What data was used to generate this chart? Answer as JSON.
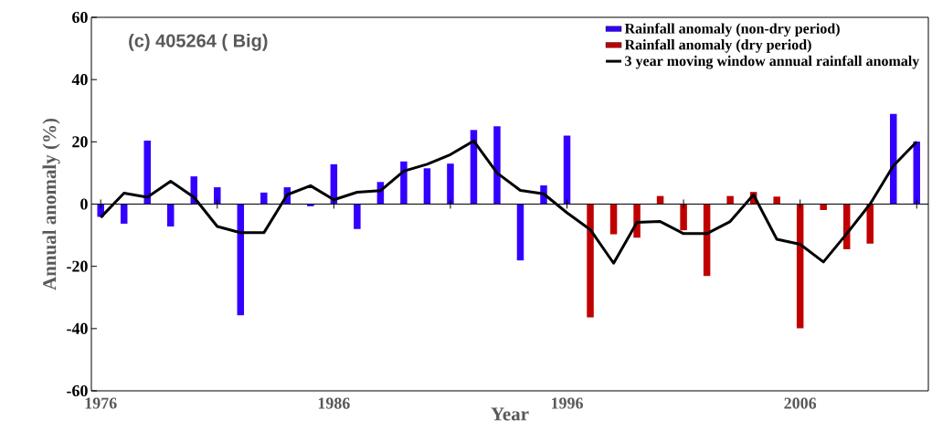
{
  "chart_data": {
    "type": "bar",
    "title": "(c) 405264 ( Big)",
    "xlabel": "Year",
    "ylabel": "Annual anomaly (%)",
    "x": [
      1976,
      1977,
      1978,
      1979,
      1980,
      1981,
      1982,
      1983,
      1984,
      1985,
      1986,
      1987,
      1988,
      1989,
      1990,
      1991,
      1992,
      1993,
      1994,
      1995,
      1996,
      1997,
      1998,
      1999,
      2000,
      2001,
      2002,
      2003,
      2004,
      2005,
      2006,
      2007,
      2008,
      2009,
      2010,
      2011
    ],
    "series": [
      {
        "name": "Rainfall anomaly (non-dry period)",
        "color": "#3300ff",
        "values": [
          -4.1,
          -6.3,
          20.4,
          -7.2,
          8.9,
          5.4,
          -35.7,
          3.7,
          5.4,
          -0.7,
          12.8,
          -8.0,
          7.1,
          13.7,
          11.5,
          13.0,
          23.8,
          25.0,
          -18.1,
          6.0,
          22.0,
          null,
          null,
          null,
          null,
          null,
          null,
          null,
          null,
          null,
          null,
          null,
          null,
          null,
          29.0,
          20.1
        ]
      },
      {
        "name": "Rainfall anomaly (dry period)",
        "color": "#c00000",
        "values": [
          null,
          null,
          null,
          null,
          null,
          null,
          null,
          null,
          null,
          null,
          null,
          null,
          null,
          null,
          null,
          null,
          null,
          null,
          null,
          null,
          null,
          -36.4,
          -9.7,
          -10.8,
          2.6,
          -8.4,
          -23.1,
          2.6,
          3.9,
          2.4,
          -39.9,
          -1.9,
          -14.5,
          -12.7,
          null,
          null
        ]
      },
      {
        "name": "3 year moving window annual rainfall anomaly",
        "type": "line",
        "color": "#000000",
        "values": [
          -4.3,
          3.5,
          2.2,
          7.3,
          2.2,
          -7.2,
          -9.2,
          -9.2,
          3.0,
          5.9,
          1.4,
          3.8,
          4.3,
          10.6,
          12.8,
          15.9,
          20.3,
          10.0,
          4.4,
          3.3,
          -2.8,
          -8.2,
          -19.0,
          -5.9,
          -5.6,
          -9.5,
          -9.5,
          -5.6,
          3.0,
          -11.3,
          -12.9,
          -18.6,
          -9.5,
          0.0,
          12.3,
          20.0
        ]
      }
    ],
    "xlim": [
      1975.6,
      2011.5
    ],
    "xticks": [
      1976,
      {
        "value": 1981,
        "label": null
      },
      1986,
      {
        "value": 1991,
        "label": null
      },
      1996,
      {
        "value": 2001,
        "label": null
      },
      2006,
      {
        "value": 2011,
        "label": null
      }
    ],
    "ylim": [
      -60,
      60
    ],
    "yticks": [
      -60,
      -40,
      -20,
      0,
      20,
      40,
      60
    ],
    "ref_lines": [
      {
        "axis": "y",
        "value": 0,
        "color": "#000000"
      }
    ],
    "legend": "top right",
    "marker": "none",
    "line_style": "solid",
    "grid": false
  }
}
